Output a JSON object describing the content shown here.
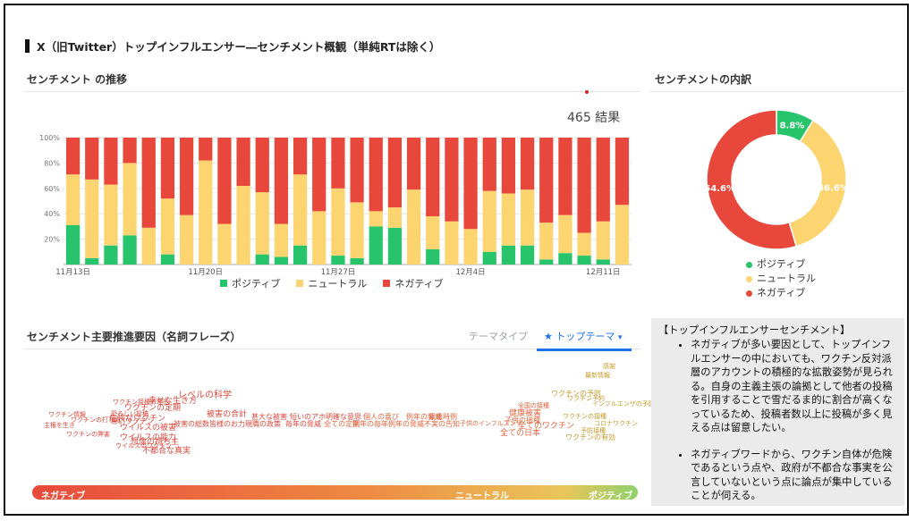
{
  "page_title": "X（旧Twitter）トップインフルエンサー―センチメント概観（単純RTは除く）",
  "trend": {
    "title": "センチメント の推移",
    "result_count": "465 結果"
  },
  "breakdown": {
    "title": "センチメントの内訳"
  },
  "factors": {
    "title": "センチメント主要推進要因（名詞フレーズ）",
    "tab_theme_type": "テーマタイプ",
    "tab_top_theme": "トップテーマ"
  },
  "colors": {
    "positive": "#27c46b",
    "neutral": "#fdd570",
    "negative": "#e8473c",
    "accent": "#1a73e8"
  },
  "legend": {
    "positive": "ポジティブ",
    "neutral": "ニュートラル",
    "negative": "ネガティブ"
  },
  "chart_data": [
    {
      "type": "bar",
      "stacked": true,
      "y_tick_labels": [
        "20%",
        "40%",
        "60%",
        "80%",
        "100%"
      ],
      "x_tick_labels": [
        "11月13日",
        "11月20日",
        "11月27日",
        "12月4日",
        "12月11日"
      ],
      "ylim": [
        0,
        100
      ],
      "series": [
        {
          "name": "ポジティブ",
          "values": [
            31,
            5,
            15,
            23,
            0,
            8,
            0,
            0,
            0,
            0,
            8,
            6,
            15,
            0,
            7,
            5,
            30,
            29,
            0,
            12,
            0,
            0,
            10,
            15,
            15,
            4,
            9,
            7,
            4,
            0
          ]
        },
        {
          "name": "ニュートラル",
          "values": [
            40,
            62,
            48,
            57,
            29,
            44,
            39,
            82,
            32,
            62,
            49,
            26,
            56,
            42,
            53,
            44,
            12,
            16,
            59,
            26,
            34,
            28,
            48,
            41,
            44,
            29,
            30,
            18,
            30,
            47
          ]
        },
        {
          "name": "ネガティブ",
          "values": [
            29,
            33,
            37,
            20,
            71,
            48,
            61,
            18,
            68,
            38,
            43,
            68,
            29,
            58,
            40,
            51,
            58,
            55,
            41,
            62,
            66,
            72,
            42,
            44,
            41,
            67,
            61,
            75,
            66,
            53
          ]
        }
      ]
    },
    {
      "type": "pie",
      "donut": true,
      "labels": [
        "ポジティブ",
        "ニュートラル",
        "ネガティブ"
      ],
      "values": [
        8.8,
        36.6,
        54.6
      ],
      "value_labels": [
        "8.8%",
        "36.6%",
        "54.6%"
      ]
    }
  ],
  "word_cloud": [
    {
      "text": "レベルの科学",
      "tone": "neg"
    },
    {
      "text": "ワクチン接種の理由",
      "tone": "neg"
    },
    {
      "text": "幸せな生き方",
      "tone": "neg"
    },
    {
      "text": "ワクチンの定期",
      "tone": "neg"
    },
    {
      "text": "恐ろしい投稿",
      "tone": "neg"
    },
    {
      "text": "危険なワクチン",
      "tone": "neg"
    },
    {
      "text": "ウイルスの被害",
      "tone": "neg"
    },
    {
      "text": "ワクチン情報",
      "tone": "neg"
    },
    {
      "text": "ワクチンの弊害",
      "tone": "neg"
    },
    {
      "text": "主権を生き",
      "tone": "neg"
    },
    {
      "text": "ワクチンの打ち方",
      "tone": "neg"
    },
    {
      "text": "ウイルスの能力",
      "tone": "neg"
    },
    {
      "text": "悪いワクチン",
      "tone": "neg"
    },
    {
      "text": "想像の持ち主",
      "tone": "neg"
    },
    {
      "text": "ウイルスのワクチン",
      "tone": "neg"
    },
    {
      "text": "不都合な真実",
      "tone": "neg"
    },
    {
      "text": "被害の合計",
      "tone": "neg"
    },
    {
      "text": "被害の総数",
      "tone": "neg"
    },
    {
      "text": "皆様のお力",
      "tone": "neg"
    },
    {
      "text": "甚大な被害",
      "tone": "neg"
    },
    {
      "text": "現職の政策",
      "tone": "neg"
    },
    {
      "text": "短いのアホ",
      "tone": "neg"
    },
    {
      "text": "毎年の脅威",
      "tone": "neg"
    },
    {
      "text": "明確な意思",
      "tone": "neg"
    },
    {
      "text": "全ての定期",
      "tone": "mid"
    },
    {
      "text": "個人の喜び",
      "tone": "mid"
    },
    {
      "text": "例年の脅威",
      "tone": "mid"
    },
    {
      "text": "例年の毎年",
      "tone": "mid"
    },
    {
      "text": "例年の脅威",
      "tone": "mid"
    },
    {
      "text": "緊急時例",
      "tone": "mid"
    },
    {
      "text": "不実の告知",
      "tone": "mid"
    },
    {
      "text": "子供のインフルエンザ",
      "tone": "mid"
    },
    {
      "text": "全ての日本",
      "tone": "mid"
    },
    {
      "text": "子供の接種",
      "tone": "mid"
    },
    {
      "text": "全てのワクチン",
      "tone": "mid"
    },
    {
      "text": "健康被害",
      "tone": "mid"
    },
    {
      "text": "全国の接種",
      "tone": "mid"
    },
    {
      "text": "インフルエンザの予防",
      "tone": "pos"
    },
    {
      "text": "ワクチンの予防",
      "tone": "pos"
    },
    {
      "text": "ワクチンの接種",
      "tone": "pos"
    },
    {
      "text": "ワクチン予約",
      "tone": "pos"
    },
    {
      "text": "ワクチンの有効",
      "tone": "pos"
    },
    {
      "text": "コロナワクチン",
      "tone": "pos"
    },
    {
      "text": "予防接種",
      "tone": "pos"
    },
    {
      "text": "最新情報",
      "tone": "pos"
    },
    {
      "text": "感謝",
      "tone": "pos"
    }
  ],
  "gradient_labels": {
    "negative": "ネガティブ",
    "neutral": "ニュートラル",
    "positive": "ポジティブ"
  },
  "note": {
    "title": "【トップインフルエンサーセンチメント】",
    "bullets": [
      "ネガティブが多い要因として、トップインフルエンサーの中においても、ワクチン反対派層のアカウントの積極的な拡散姿勢が見られる。自身の主義主張の論拠として他者の投稿を引用することで雪だるま的に割合が高くなっているため、投稿者数以上に投稿が多く見える点は留意したい。",
      "ネガティブワードから、ワクチン自体が危険であるという点や、政府が不都合な事実を公言していないという点に論点が集中していることが伺える。"
    ]
  }
}
